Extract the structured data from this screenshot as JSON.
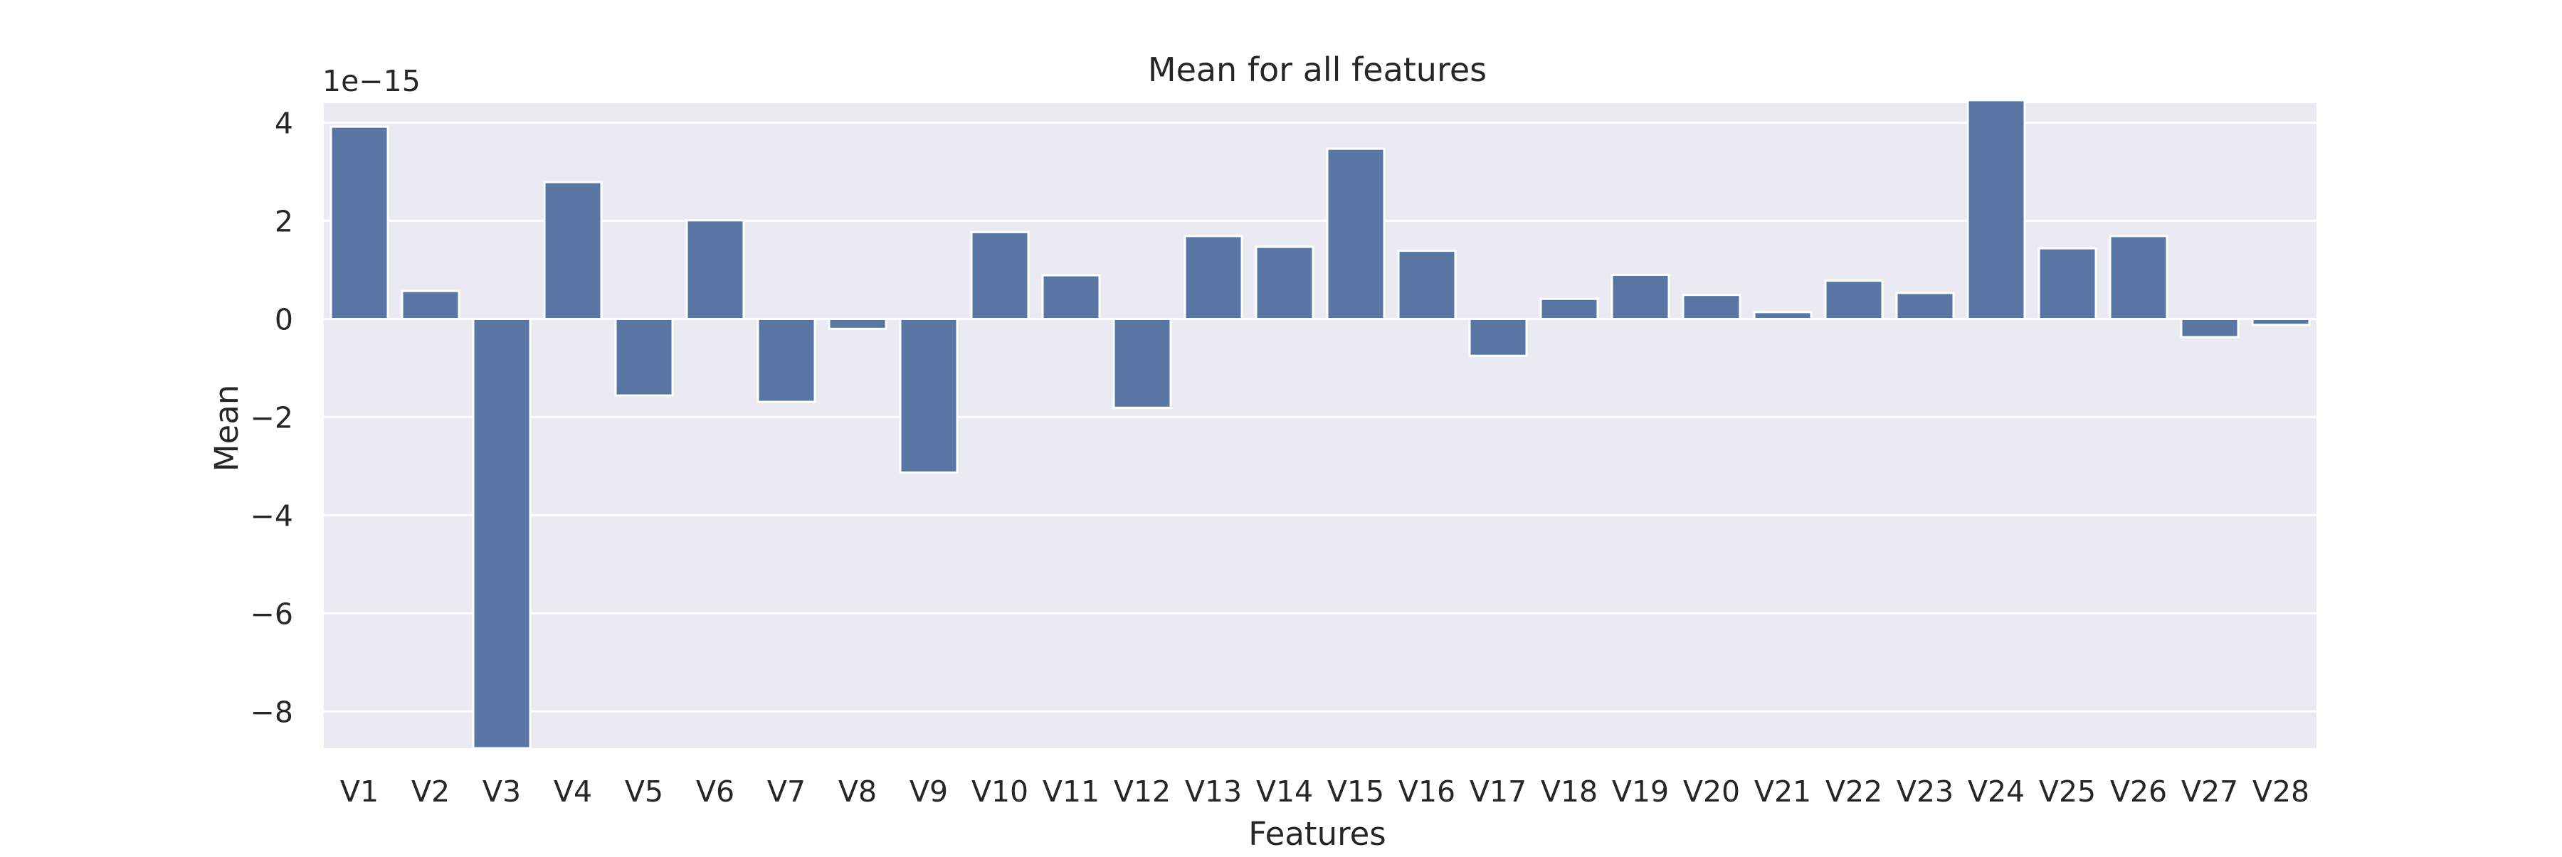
{
  "chart_data": {
    "type": "bar",
    "title": "Mean for all features",
    "xlabel": "Features",
    "ylabel": "Mean",
    "offset_label": "1e−15",
    "categories": [
      "V1",
      "V2",
      "V3",
      "V4",
      "V5",
      "V6",
      "V7",
      "V8",
      "V9",
      "V10",
      "V11",
      "V12",
      "V13",
      "V14",
      "V15",
      "V16",
      "V17",
      "V18",
      "V19",
      "V20",
      "V21",
      "V22",
      "V23",
      "V24",
      "V25",
      "V26",
      "V27",
      "V28"
    ],
    "values": [
      3.92,
      0.57,
      -8.75,
      2.79,
      -1.56,
      2.01,
      -1.69,
      -0.2,
      -3.13,
      1.77,
      0.89,
      -1.81,
      1.69,
      1.47,
      3.47,
      1.39,
      -0.75,
      0.41,
      0.9,
      0.49,
      0.14,
      0.78,
      0.53,
      4.46,
      1.44,
      1.69,
      -0.37,
      -0.12
    ],
    "ylim": [
      -8.75,
      4.4
    ],
    "yticks": [
      4,
      2,
      0,
      -2,
      -4,
      -6,
      -8
    ],
    "ytick_labels": [
      "4",
      "2",
      "0",
      "−2",
      "−4",
      "−6",
      "−8"
    ],
    "grid": true,
    "colors": {
      "bar": "#5875a4",
      "plot_background": "#eaeaf2",
      "grid": "#ffffff"
    }
  }
}
